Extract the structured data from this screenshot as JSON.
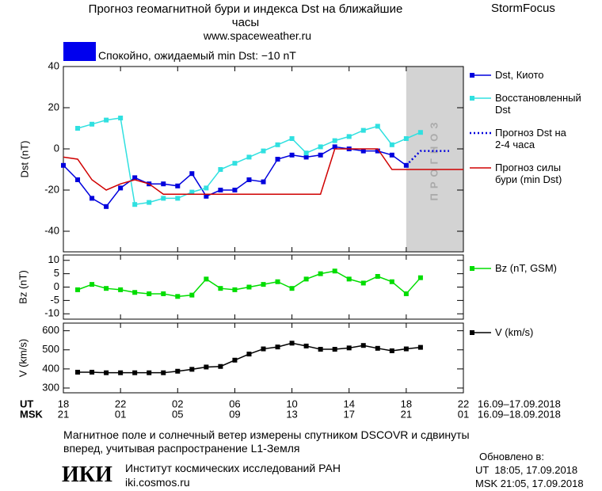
{
  "header": {
    "title": "Прогноз геомагнитной бури и индекса Dst на ближайшие часы",
    "url": "www.spaceweather.ru",
    "brand": "StormFocus"
  },
  "status": {
    "text": "Спокойно, ожидаемый min Dst: −10 nT",
    "color": "#0000ee"
  },
  "chart_data": [
    {
      "type": "line",
      "ylabel": "Dst (nT)",
      "xlim": [
        18,
        46
      ],
      "ylim": [
        -50,
        40
      ],
      "yticks": [
        -40,
        -20,
        0,
        20,
        40
      ],
      "forecast_span": [
        42,
        46
      ],
      "forecast_label": "ПРОГНОЗ",
      "series": [
        {
          "name": "Dst, Киото",
          "color": "#0000dd",
          "marker": "square",
          "dash": "solid",
          "x": [
            18,
            19,
            20,
            21,
            22,
            23,
            24,
            25,
            26,
            27,
            28,
            29,
            30,
            31,
            32,
            33,
            34,
            35,
            36,
            37,
            38,
            39,
            40,
            41,
            42
          ],
          "values": [
            -8,
            -15,
            -24,
            -28,
            -19,
            -14,
            -17,
            -17,
            -18,
            -12,
            -23,
            -20,
            -20,
            -15,
            -16,
            -5,
            -3,
            -4,
            -3,
            1,
            0,
            -1,
            -1,
            -3,
            -8
          ]
        },
        {
          "name": "Восстановленный Dst",
          "color": "#30e0e0",
          "marker": "square",
          "dash": "solid",
          "x": [
            19,
            20,
            21,
            22,
            23,
            24,
            25,
            26,
            27,
            28,
            29,
            30,
            31,
            32,
            33,
            34,
            35,
            36,
            37,
            38,
            39,
            40,
            41,
            42,
            43
          ],
          "values": [
            10,
            12,
            14,
            15,
            -27,
            -26,
            -24,
            -24,
            -21,
            -19,
            -10,
            -7,
            -4,
            -1,
            2,
            5,
            -2,
            1,
            4,
            6,
            9,
            11,
            2,
            5,
            8
          ]
        },
        {
          "name": "Прогноз Dst на 2-4 часа",
          "color": "#0000dd",
          "marker": "none",
          "dash": "dotted",
          "x": [
            42,
            43,
            44,
            45
          ],
          "values": [
            -8,
            -1,
            -1,
            -1
          ]
        },
        {
          "name": "Прогноз силы бури (min Dst)",
          "color": "#d00000",
          "marker": "none",
          "dash": "solid",
          "x": [
            18,
            19,
            20,
            21,
            22,
            23,
            24,
            25,
            36,
            37,
            40,
            41,
            46
          ],
          "values": [
            -4,
            -5,
            -15,
            -20,
            -17,
            -15,
            -17,
            -22,
            -22,
            0,
            0,
            -10,
            -10
          ]
        }
      ]
    },
    {
      "type": "line",
      "ylabel": "Bz (nT)",
      "xlim": [
        18,
        46
      ],
      "ylim": [
        -12,
        12
      ],
      "yticks": [
        -10,
        -5,
        0,
        5,
        10
      ],
      "series": [
        {
          "name": "Bz (nT, GSM)",
          "color": "#00dd00",
          "marker": "square",
          "dash": "solid",
          "x": [
            19,
            20,
            21,
            22,
            23,
            24,
            25,
            26,
            27,
            28,
            29,
            30,
            31,
            32,
            33,
            34,
            35,
            36,
            37,
            38,
            39,
            40,
            41,
            42,
            43
          ],
          "values": [
            -1,
            1,
            -0.5,
            -1,
            -2,
            -2.5,
            -2.5,
            -3.5,
            -3,
            3,
            -0.5,
            -1,
            0,
            1,
            2,
            -0.5,
            3,
            5,
            6,
            3,
            1.5,
            4,
            2,
            -2.5,
            3.5
          ]
        }
      ]
    },
    {
      "type": "line",
      "ylabel": "V (km/s)",
      "xlim": [
        18,
        46
      ],
      "ylim": [
        275,
        640
      ],
      "yticks": [
        300,
        400,
        500,
        600
      ],
      "xtick_title": "UT",
      "x2tick_title": "MSK",
      "x_dates": "16.09–17.09.2018",
      "x2_dates": "16.09–18.09.2018",
      "xticks": [
        18,
        22,
        {
          "value": 26,
          "label": "02"
        },
        {
          "value": 30,
          "label": "06"
        },
        {
          "value": 34,
          "label": "10"
        },
        {
          "value": 38,
          "label": "14"
        },
        {
          "value": 42,
          "label": "18"
        },
        {
          "value": 46,
          "label": "22"
        }
      ],
      "x2tick_labels": [
        "21",
        "01",
        "05",
        "09",
        "13",
        "17",
        "21",
        "01"
      ],
      "series": [
        {
          "name": "V (km/s)",
          "color": "#000000",
          "marker": "square",
          "dash": "solid",
          "x": [
            19,
            20,
            21,
            22,
            23,
            24,
            25,
            26,
            27,
            28,
            29,
            30,
            31,
            32,
            33,
            34,
            35,
            36,
            37,
            38,
            39,
            40,
            41,
            42,
            43
          ],
          "values": [
            383,
            383,
            380,
            380,
            380,
            380,
            380,
            388,
            398,
            410,
            413,
            446,
            478,
            505,
            515,
            535,
            520,
            503,
            503,
            510,
            523,
            508,
            495,
            505,
            513
          ]
        }
      ]
    }
  ],
  "footer": {
    "note": "Магнитное поле и солнечный ветер измерены спутником DSCOVR и сдвинуты вперед, учитывая распространение L1-Земля",
    "logo": "ИКИ",
    "institute": "Институт космических исследований РАН",
    "site": "iki.cosmos.ru",
    "updated": "Обновлено в:",
    "updated_ut": "UT  18:05, 17.09.2018",
    "updated_msk": "MSK 21:05, 17.09.2018"
  }
}
